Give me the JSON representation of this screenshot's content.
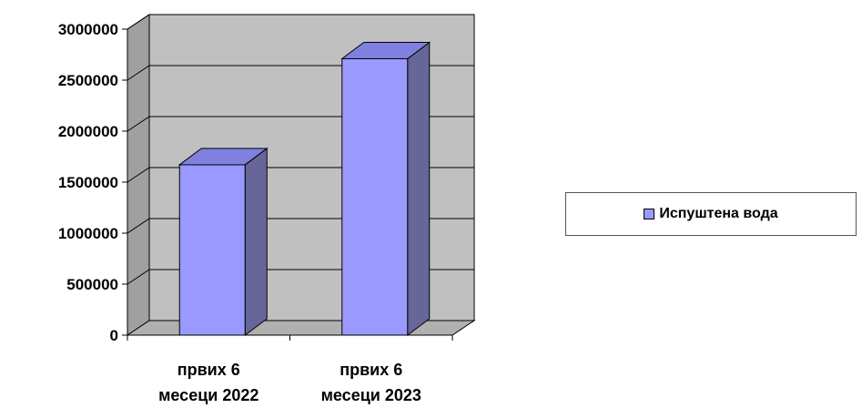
{
  "chart_data": {
    "type": "bar",
    "categories": [
      "првих 6 месеци 2022",
      "првих 6 месеци 2023"
    ],
    "category_lines": [
      [
        "првих 6",
        "месеци 2022"
      ],
      [
        "првих 6",
        "месеци 2023"
      ]
    ],
    "series": [
      {
        "name": "Испуштена вода",
        "values": [
          1670000,
          2710000
        ]
      }
    ],
    "ylim": [
      0,
      3000000
    ],
    "yticks": [
      0,
      500000,
      1000000,
      1500000,
      2000000,
      2500000,
      3000000
    ],
    "grid": true,
    "legend": "right",
    "colors": {
      "bar_front": "#9999ff",
      "bar_side": "#666699",
      "bar_top": "#8080e0",
      "plot_back": "#c0c0c0",
      "plot_wall": "#a0a0a0",
      "floor": "#b0b0b0"
    }
  }
}
